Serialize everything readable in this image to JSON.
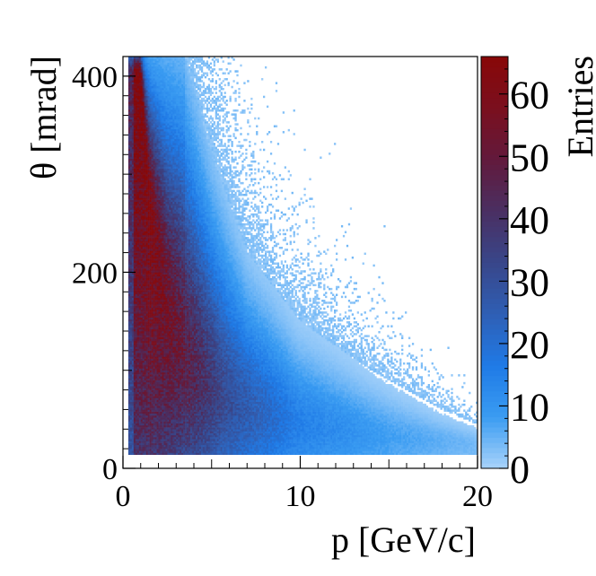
{
  "chart_data": {
    "type": "heatmap",
    "title": "",
    "xlabel": "p [GeV/c]",
    "ylabel": "θ [mrad]",
    "zlabel": "Entries",
    "xlim": [
      0,
      20
    ],
    "ylim": [
      0,
      420
    ],
    "zlim": [
      0,
      66
    ],
    "x_ticks": [
      "0",
      "10",
      "20"
    ],
    "y_ticks": [
      "0",
      "200",
      "400"
    ],
    "z_ticks": [
      "0",
      "10",
      "20",
      "30",
      "40",
      "50",
      "60"
    ],
    "x_tick_values": [
      0,
      10,
      20
    ],
    "y_tick_values": [
      0,
      200,
      400
    ],
    "z_tick_values": [
      0,
      10,
      20,
      30,
      40,
      50,
      60
    ],
    "grid": false,
    "colormap": [
      "#a9d3fa",
      "#3a9cf2",
      "#1f7ae6",
      "#2f5fb4",
      "#38468a",
      "#4a2f62",
      "#621a3c",
      "#7a0f1e",
      "#880808"
    ],
    "distribution": {
      "description_of_ridge": "max-entries ridge follows theta ≈ 400 mrad near p≈1 GeV/c, decreasing to ≈30 mrad near p≈20 GeV/c",
      "ridge_points": [
        {
          "p": 1.0,
          "theta": 400,
          "entries": 64
        },
        {
          "p": 1.5,
          "theta": 260,
          "entries": 62
        },
        {
          "p": 2.5,
          "theta": 150,
          "entries": 55
        },
        {
          "p": 4.0,
          "theta": 90,
          "entries": 45
        },
        {
          "p": 6.0,
          "theta": 60,
          "entries": 30
        },
        {
          "p": 10.0,
          "theta": 40,
          "entries": 15
        },
        {
          "p": 15.0,
          "theta": 30,
          "entries": 8
        },
        {
          "p": 20.0,
          "theta": 25,
          "entries": 4
        }
      ],
      "edge_points": [
        {
          "p": 3.5,
          "theta": 420
        },
        {
          "p": 5.0,
          "theta": 320
        },
        {
          "p": 7.0,
          "theta": 220
        },
        {
          "p": 10.0,
          "theta": 150
        },
        {
          "p": 14.0,
          "theta": 100
        },
        {
          "p": 18.0,
          "theta": 60
        },
        {
          "p": 20.0,
          "theta": 45
        }
      ]
    }
  }
}
